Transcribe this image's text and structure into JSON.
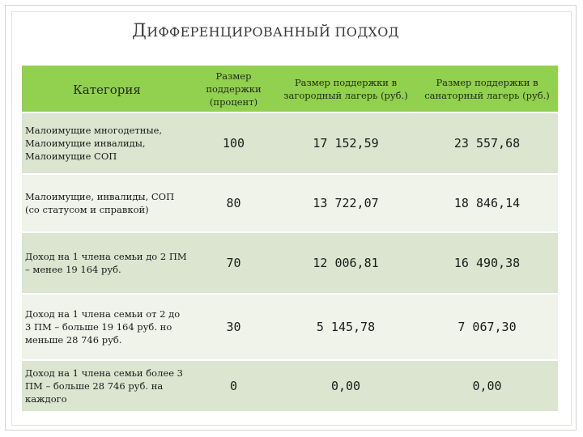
{
  "title": {
    "first_letter": "Д",
    "rest": "ИФФЕРЕНЦИРОВАННЫЙ ПОДХОД"
  },
  "table": {
    "headers": [
      "Категория",
      "Размер поддержки (процент)",
      "Размер поддержки в загородный лагерь (руб.)",
      "Размер поддержки в санаторный лагерь (руб.)"
    ],
    "rows": [
      {
        "category": "Малоимущие многодетные, Малоимущие инвалиды, Малоимущие СОП",
        "percent": "100",
        "country_camp": "17 152,59",
        "sanatorium_camp": "23 557,68"
      },
      {
        "category": "Малоимущие, инвалиды, СОП (со статусом и справкой)",
        "percent": "80",
        "country_camp": "13 722,07",
        "sanatorium_camp": "18 846,14"
      },
      {
        "category": "Доход на 1 члена семьи до 2 ПМ – менее 19 164 руб.",
        "percent": "70",
        "country_camp": "12 006,81",
        "sanatorium_camp": "16 490,38"
      },
      {
        "category": "Доход на 1 члена семьи от 2 до 3 ПМ – больше 19 164 руб. но меньше 28 746 руб.",
        "percent": "30",
        "country_camp": "5 145,78",
        "sanatorium_camp": "7 067,30"
      },
      {
        "category": "Доход на 1 члена семьи более 3 ПМ – больше 28 746 руб. на каждого",
        "percent": "0",
        "country_camp": "0,00",
        "sanatorium_camp": "0,00"
      }
    ]
  },
  "colors": {
    "header_bg": "#92d050",
    "row_odd_bg": "#dbe5d0",
    "row_even_bg": "#eff3ea"
  }
}
